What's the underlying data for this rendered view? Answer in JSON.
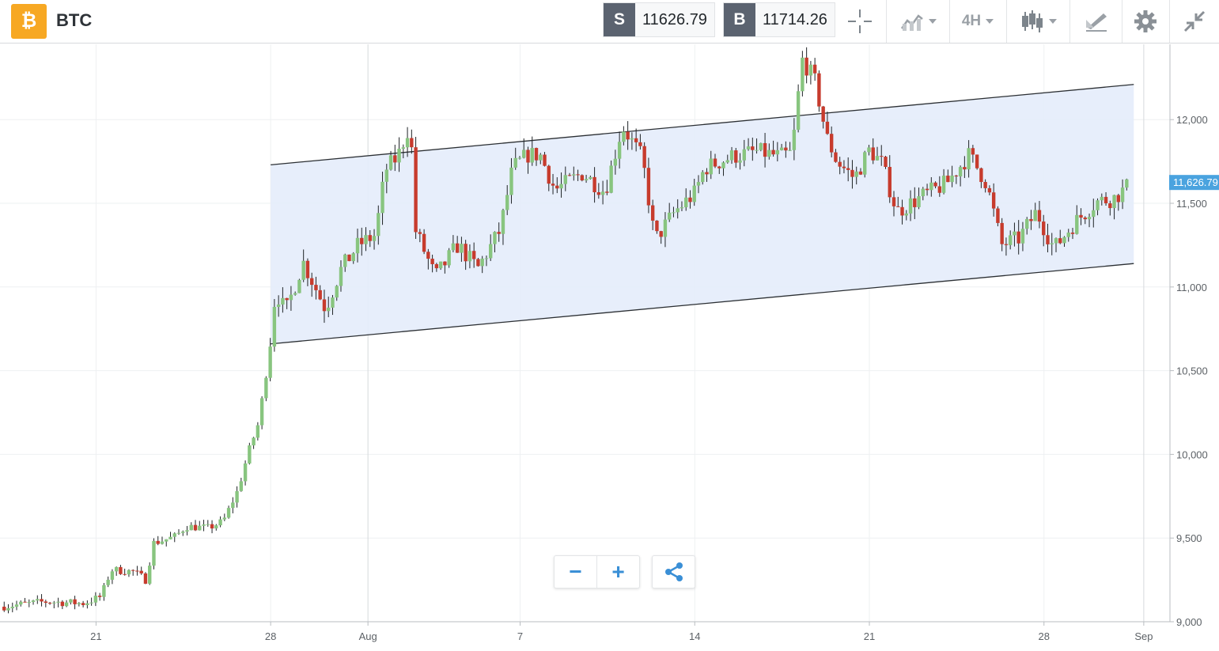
{
  "header": {
    "coin_icon": "bitcoin-icon",
    "symbol": "BTC",
    "sell_tag": "S",
    "sell_price": "11626.79",
    "buy_tag": "B",
    "buy_price": "11714.26",
    "timeframe": "4H",
    "icons": [
      "crosshair-icon",
      "chart-compare-icon",
      "candlestick-icon",
      "drawing-tool-icon",
      "gear-icon",
      "collapse-icon"
    ]
  },
  "controls": {
    "zoom_out_label": "−",
    "zoom_in_label": "+",
    "share_icon": "share-icon"
  },
  "colors": {
    "up": "#88c57f",
    "down": "#c73b2d",
    "channel_fill": "#e4ecfb",
    "price_tag": "#4aa3df",
    "coin": "#f7a823"
  },
  "chart_data": {
    "type": "candlestick",
    "timeframe": "4H",
    "x_ticks": [
      {
        "label": "21",
        "t": 2.0
      },
      {
        "label": "28",
        "t": 9.0
      },
      {
        "label": "Aug",
        "t": 12.9
      },
      {
        "label": "7",
        "t": 19.0
      },
      {
        "label": "14",
        "t": 26.0
      },
      {
        "label": "21",
        "t": 33.0
      },
      {
        "label": "28",
        "t": 40.0
      },
      {
        "label": "Sep",
        "t": 44.0
      }
    ],
    "y_ticks": [
      9000,
      9500,
      10000,
      10500,
      11000,
      11500,
      12000
    ],
    "y_tick_labels": [
      "9,000",
      "9,500",
      "10,000",
      "10,500",
      "11,000",
      "11,500",
      "12,000"
    ],
    "ylim": [
      9000,
      12450
    ],
    "xlim": [
      -1.85,
      45.05
    ],
    "last_price": 11626.79,
    "last_price_label": "11,626.79",
    "channel": {
      "start": {
        "t": 9.0,
        "upper": 11730,
        "lower": 10660
      },
      "end": {
        "t": 43.6,
        "upper": 12210,
        "lower": 11140
      }
    },
    "anchors": [
      [
        -1.85,
        9090
      ],
      [
        0,
        9120
      ],
      [
        1.5,
        9110
      ],
      [
        2.2,
        9150
      ],
      [
        2.6,
        9310
      ],
      [
        3.5,
        9300
      ],
      [
        4.0,
        9250
      ],
      [
        4.3,
        9470
      ],
      [
        5.2,
        9510
      ],
      [
        5.6,
        9570
      ],
      [
        6.5,
        9560
      ],
      [
        7.1,
        9600
      ],
      [
        7.7,
        9790
      ],
      [
        8.1,
        10010
      ],
      [
        8.5,
        10180
      ],
      [
        8.9,
        10560
      ],
      [
        9.2,
        10980
      ],
      [
        9.6,
        10850
      ],
      [
        10.3,
        11150
      ],
      [
        11.2,
        10870
      ],
      [
        11.8,
        11100
      ],
      [
        12.5,
        11250
      ],
      [
        13.2,
        11310
      ],
      [
        13.6,
        11700
      ],
      [
        14.1,
        11780
      ],
      [
        14.6,
        11980
      ],
      [
        14.8,
        11340
      ],
      [
        15.6,
        11060
      ],
      [
        16.5,
        11250
      ],
      [
        17.3,
        11110
      ],
      [
        18.2,
        11340
      ],
      [
        18.7,
        11710
      ],
      [
        19.3,
        11790
      ],
      [
        19.8,
        11790
      ],
      [
        20.4,
        11580
      ],
      [
        21.5,
        11680
      ],
      [
        22.4,
        11570
      ],
      [
        23.1,
        11960
      ],
      [
        23.9,
        11770
      ],
      [
        24.4,
        11280
      ],
      [
        25.2,
        11450
      ],
      [
        26.0,
        11560
      ],
      [
        26.4,
        11710
      ],
      [
        27.5,
        11780
      ],
      [
        28.5,
        11810
      ],
      [
        29.4,
        11780
      ],
      [
        29.9,
        11800
      ],
      [
        30.3,
        12360
      ],
      [
        30.8,
        12240
      ],
      [
        31.3,
        11890
      ],
      [
        31.7,
        11750
      ],
      [
        32.4,
        11650
      ],
      [
        33.0,
        11820
      ],
      [
        33.5,
        11740
      ],
      [
        34.1,
        11450
      ],
      [
        35.1,
        11540
      ],
      [
        36.1,
        11620
      ],
      [
        37.0,
        11790
      ],
      [
        37.7,
        11620
      ],
      [
        38.3,
        11250
      ],
      [
        39.0,
        11290
      ],
      [
        39.7,
        11450
      ],
      [
        40.4,
        11230
      ],
      [
        41.2,
        11380
      ],
      [
        42.1,
        11510
      ],
      [
        42.8,
        11530
      ],
      [
        43.6,
        11630
      ]
    ],
    "candles_per_day": 6,
    "last_t": 43.4
  }
}
